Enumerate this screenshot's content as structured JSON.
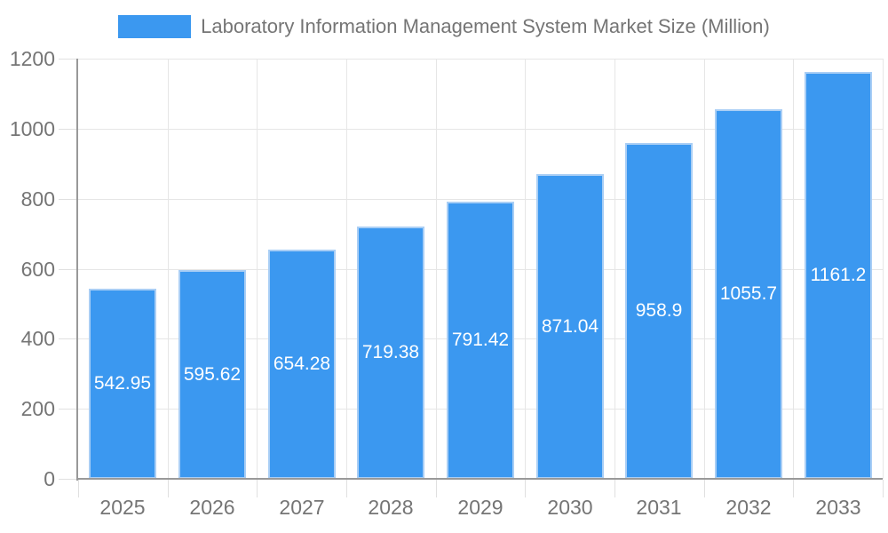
{
  "chart_data": {
    "type": "bar",
    "title": "Laboratory Information Management System Market Size (Million)",
    "legend": [
      "Laboratory Information Management System Market Size (Million)"
    ],
    "legend_position": "top",
    "categories": [
      "2025",
      "2026",
      "2027",
      "2028",
      "2029",
      "2030",
      "2031",
      "2032",
      "2033"
    ],
    "values": [
      542.95,
      595.62,
      654.28,
      719.38,
      791.42,
      871.04,
      958.9,
      1055.7,
      1161.2
    ],
    "value_labels": [
      "542.95",
      "595.62",
      "654.28",
      "719.38",
      "791.42",
      "871.04",
      "958.9",
      "1055.7",
      "1161.2"
    ],
    "xlabel": "",
    "ylabel": "",
    "ylim": [
      0,
      1200
    ],
    "y_ticks": [
      0,
      200,
      400,
      600,
      800,
      1000,
      1200
    ],
    "grid": true,
    "colors": {
      "bar_fill": "#3B98F0",
      "bar_border": "#A9CEF5",
      "value_label": "#FFFFFF",
      "axis_label": "#757575",
      "legend_text": "#757575",
      "gridline": "#E6E6E6",
      "tick_line": "#E0E0E0",
      "axis_line": "#999999",
      "background": "#FFFFFF"
    }
  }
}
